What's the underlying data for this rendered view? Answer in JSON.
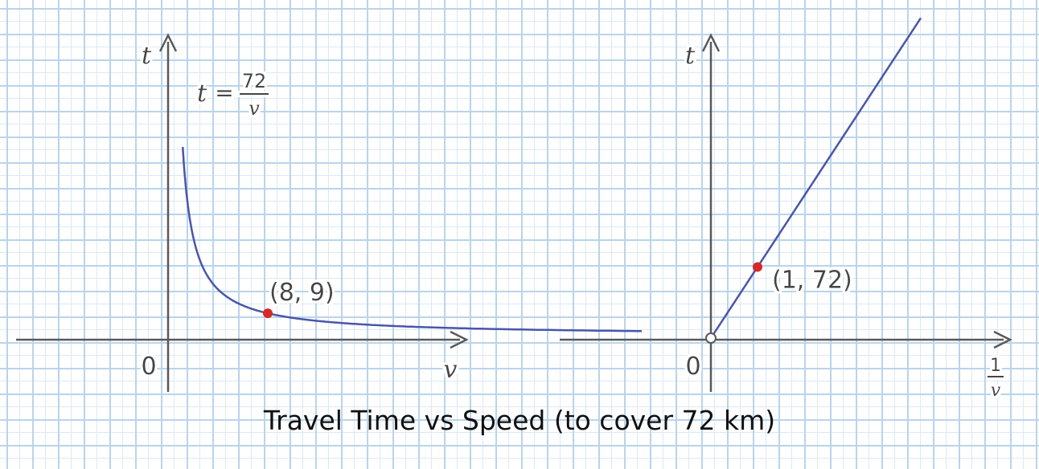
{
  "chart_data": [
    {
      "type": "line",
      "equation": {
        "lhs": "t",
        "equals": "=",
        "numerator": "72",
        "denominator": "v"
      },
      "xlabel": "v",
      "ylabel": "t",
      "origin_label": "0",
      "series": [
        {
          "formula": "t = 72/v",
          "x_domain": [
            0.95,
            39
          ]
        }
      ],
      "points": [
        {
          "x": 8,
          "y": 9,
          "label": "(8, 9)",
          "color": "#d62828"
        }
      ],
      "line_color": "#4a56a8"
    },
    {
      "type": "line",
      "xlabel_numerator": "1",
      "xlabel_denominator": "v",
      "ylabel": "t",
      "origin_label": "0",
      "series": [
        {
          "formula": "t = 72 * (1/v)",
          "x_domain": [
            0,
            4.5
          ]
        }
      ],
      "points": [
        {
          "x": 1,
          "y": 72,
          "label": "(1, 72)",
          "color": "#d62828"
        },
        {
          "x": 0,
          "y": 0,
          "label": "",
          "color": "#ffffff",
          "open": true
        }
      ],
      "line_color": "#4a56a8"
    }
  ],
  "caption": "Travel Time vs Speed (to cover 72 km)"
}
